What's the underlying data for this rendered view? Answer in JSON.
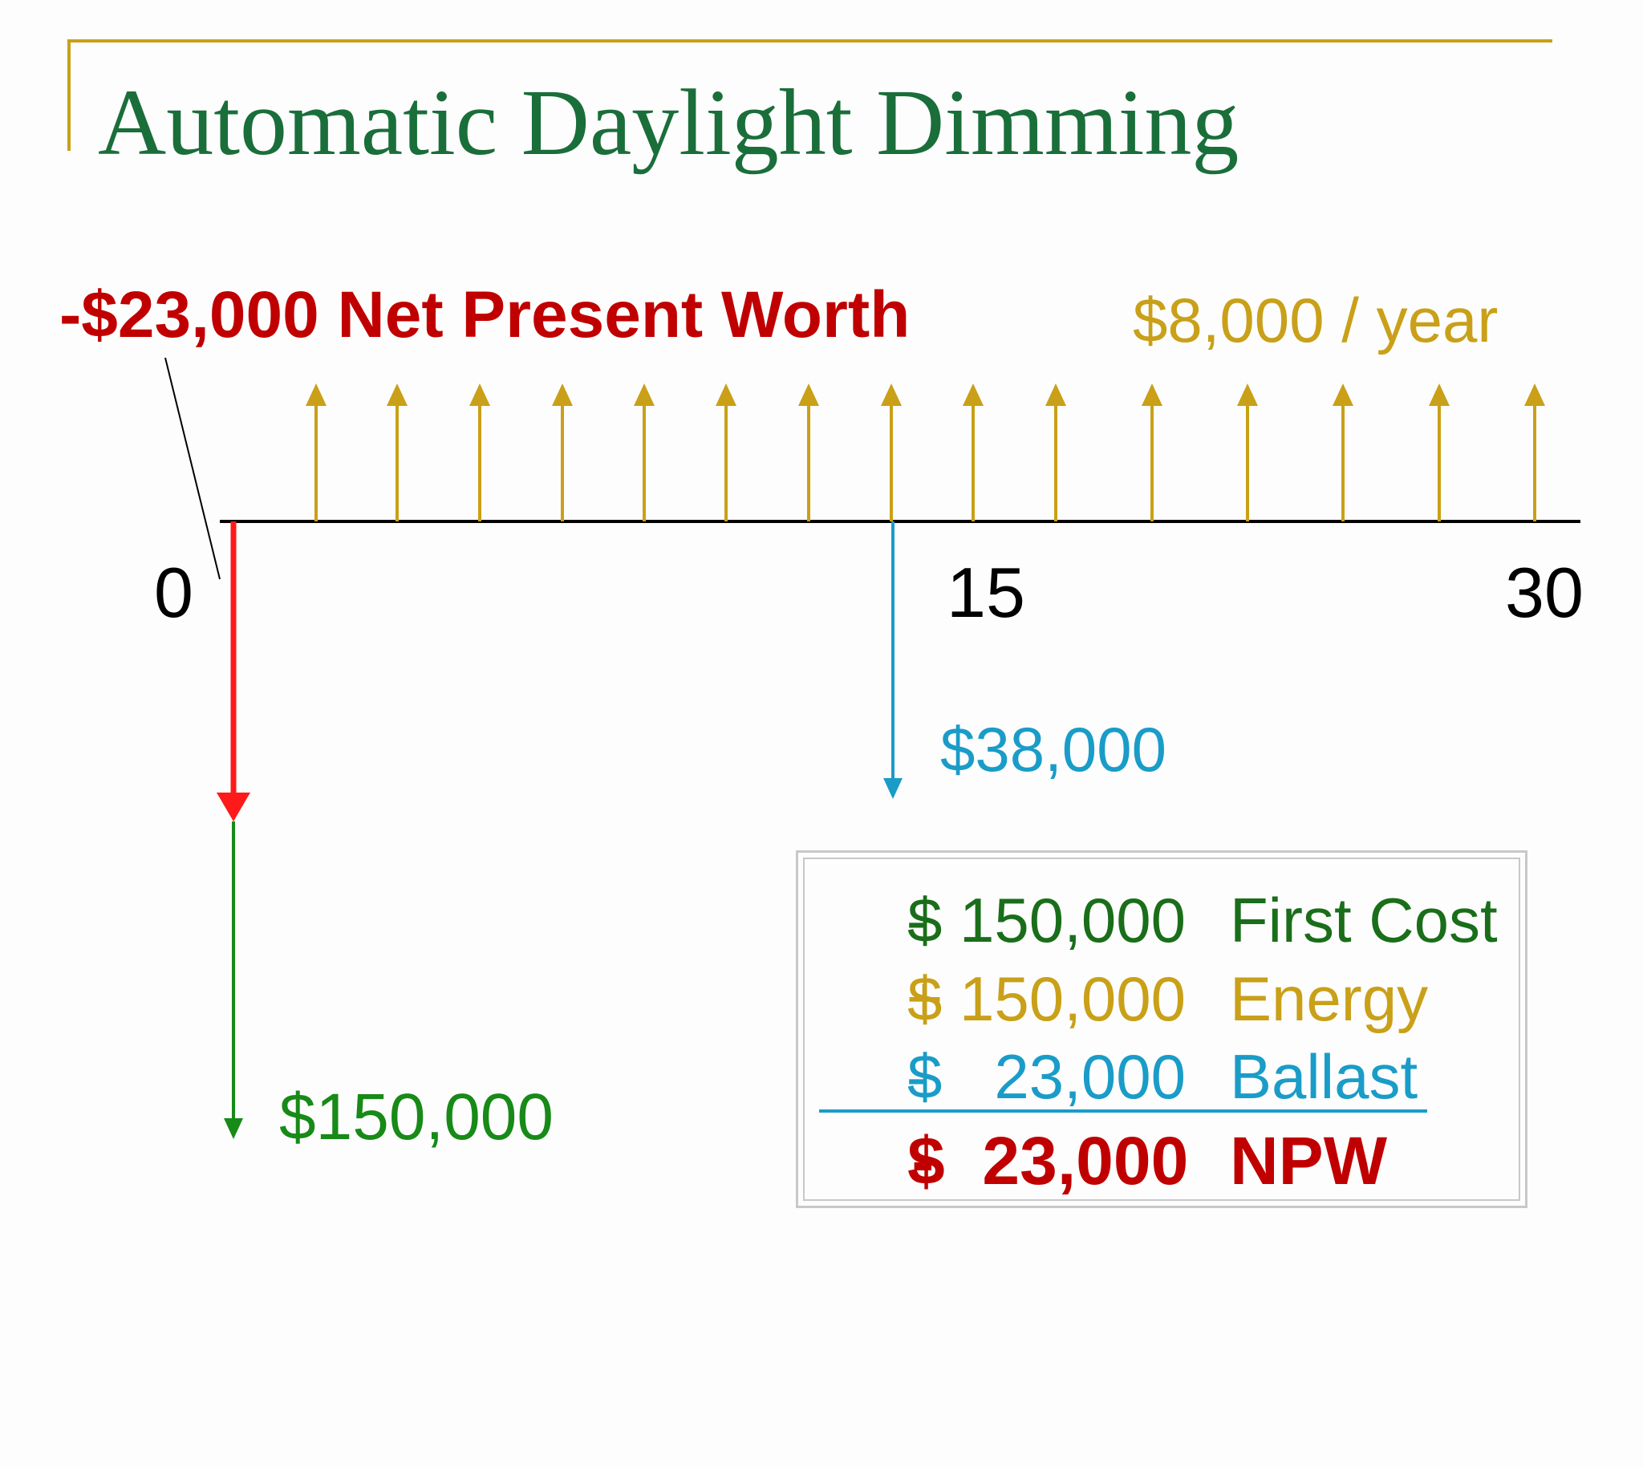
{
  "slide": {
    "title": "Automatic Daylight Dimming"
  },
  "diagram": {
    "net_present_worth_label": "-$23,000 Net Present Worth",
    "annual_savings_label": "$8,000 / year",
    "axis_ticks": [
      "0",
      "15",
      "30"
    ],
    "salvage_label": "$38,000",
    "first_cost_label": "$150,000",
    "annual_arrow_count": 15,
    "colors": {
      "npw": "#c00000",
      "annual": "#c9a018",
      "salvage": "#1a9cc8",
      "first_cost": "#178a17",
      "axis": "#000000"
    }
  },
  "summary": {
    "rows": [
      {
        "sign": "-",
        "amount": "$ 150,000",
        "desc": "First Cost"
      },
      {
        "sign": "+",
        "amount": "$ 150,000",
        "desc": "Energy"
      },
      {
        "sign": "-",
        "amount": "$   23,000",
        "desc": "Ballast"
      },
      {
        "sign": "-",
        "amount": "$  23,000",
        "desc": "NPW"
      }
    ]
  }
}
